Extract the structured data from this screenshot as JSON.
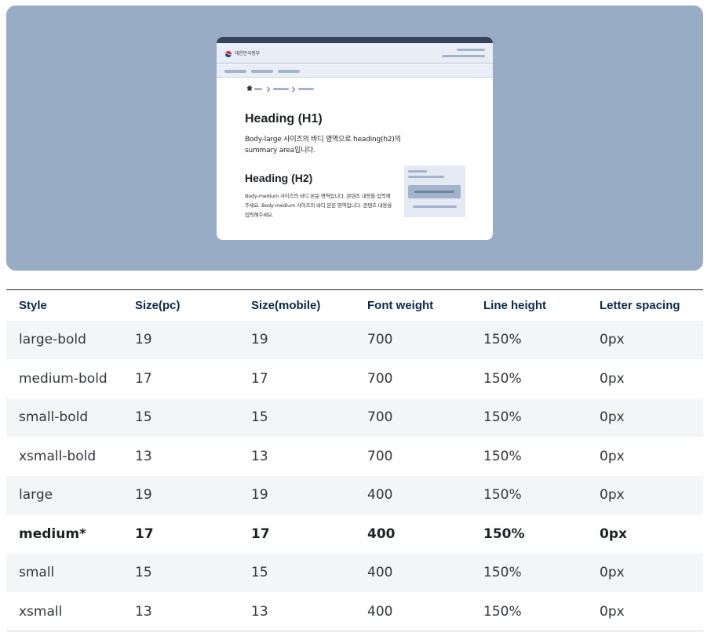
{
  "preview": {
    "gov_name": "대한민국정부",
    "heading_h1": "Heading (H1)",
    "body_large": "Body-large 사이즈의 바디 영역으로 heading(h2)의 summary area입니다.",
    "heading_h2": "Heading (H2)",
    "body_medium": "Body-medium 사이즈의 바디 본문 영역입니다. 콘텐츠 내용을 입력해주세요. Body-medium 사이즈의 바디 본문 영역입니다. 콘텐츠 내용을 입력해주세요.",
    "colors": {
      "panel_bg": "#98acc6",
      "topbar": "#33455e",
      "header_bg": "#e9eef6",
      "placeholder": "#a3b4ca"
    },
    "icons": [
      "gov-logo-icon",
      "home-icon",
      "chevron-right-icon"
    ]
  },
  "table": {
    "headers": [
      "Style",
      "Size(pc)",
      "Size(mobile)",
      "Font weight",
      "Line height",
      "Letter spacing"
    ],
    "rows": [
      [
        "large-bold",
        "19",
        "19",
        "700",
        "150%",
        "0px"
      ],
      [
        "medium-bold",
        "17",
        "17",
        "700",
        "150%",
        "0px"
      ],
      [
        "small-bold",
        "15",
        "15",
        "700",
        "150%",
        "0px"
      ],
      [
        "xsmall-bold",
        "13",
        "13",
        "700",
        "150%",
        "0px"
      ],
      [
        "large",
        "19",
        "19",
        "400",
        "150%",
        "0px"
      ],
      [
        "medium*",
        "17",
        "17",
        "400",
        "150%",
        "0px"
      ],
      [
        "small",
        "15",
        "15",
        "400",
        "150%",
        "0px"
      ],
      [
        "xsmall",
        "13",
        "13",
        "400",
        "150%",
        "0px"
      ]
    ]
  }
}
